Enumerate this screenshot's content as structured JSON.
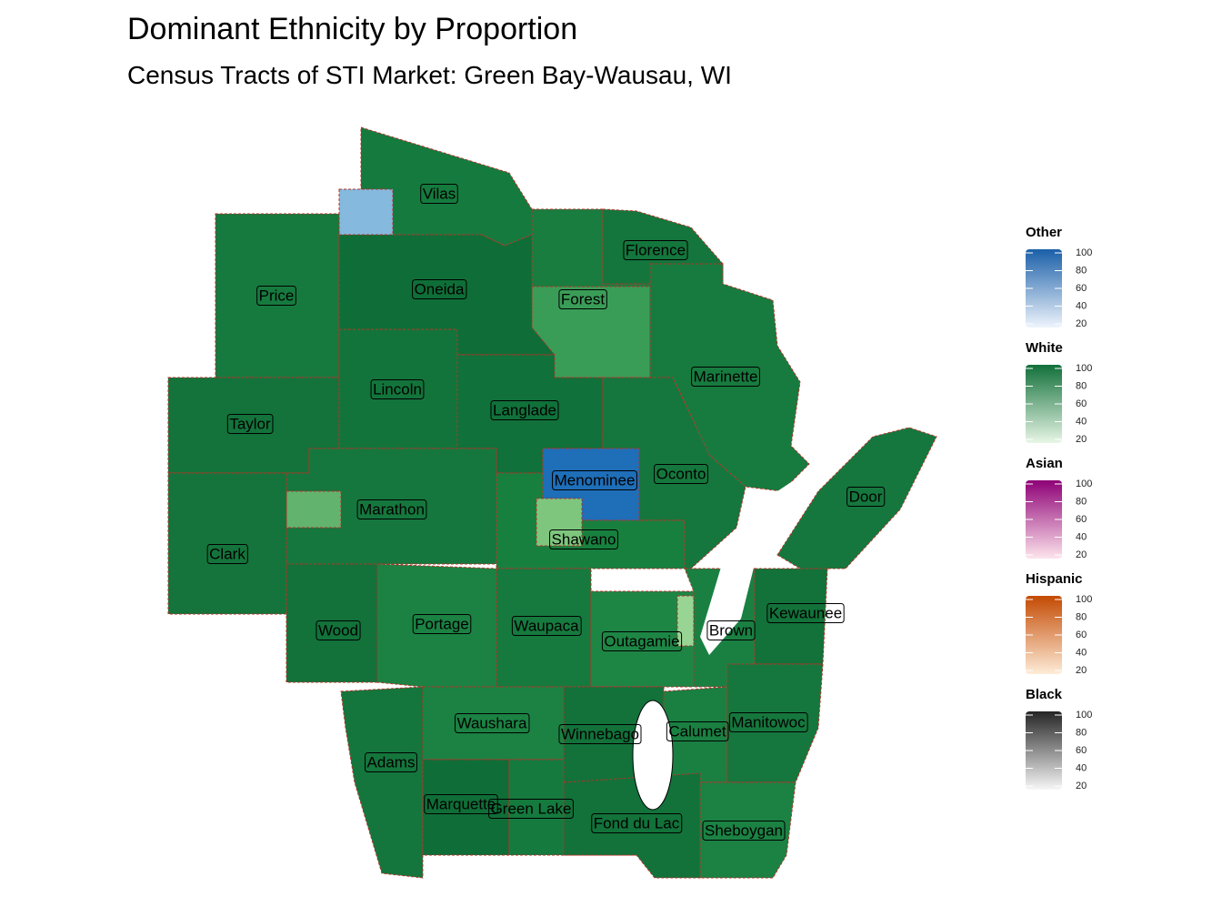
{
  "header": {
    "title": "Dominant Ethnicity by Proportion",
    "subtitle": "Census Tracts of STI Market: Green Bay-Wausau, WI"
  },
  "counties": [
    "Vilas",
    "Florence",
    "Price",
    "Oneida",
    "Forest",
    "Marinette",
    "Lincoln",
    "Langlade",
    "Taylor",
    "Menominee",
    "Oconto",
    "Door",
    "Marathon",
    "Shawano",
    "Clark",
    "Kewaunee",
    "Wood",
    "Portage",
    "Waupaca",
    "Brown",
    "Outagamie",
    "Waushara",
    "Calumet",
    "Manitowoc",
    "Winnebago",
    "Adams",
    "Marquette",
    "Green Lake",
    "Fond du Lac",
    "Sheboygan"
  ],
  "legend": [
    {
      "title": "Other",
      "colors": [
        "#eef4fc",
        "#1a5fa8"
      ],
      "ticks": [
        100,
        80,
        60,
        40,
        20
      ]
    },
    {
      "title": "White",
      "colors": [
        "#e8f6e6",
        "#12703a"
      ],
      "ticks": [
        100,
        80,
        60,
        40,
        20
      ]
    },
    {
      "title": "Asian",
      "colors": [
        "#fde4ec",
        "#8e0176"
      ],
      "ticks": [
        100,
        80,
        60,
        40,
        20
      ]
    },
    {
      "title": "Hispanic",
      "colors": [
        "#feecd8",
        "#c44a03"
      ],
      "ticks": [
        100,
        80,
        60,
        40,
        20
      ]
    },
    {
      "title": "Black",
      "colors": [
        "#f7f7f7",
        "#252525"
      ],
      "ticks": [
        100,
        80,
        60,
        40,
        20
      ]
    }
  ]
}
